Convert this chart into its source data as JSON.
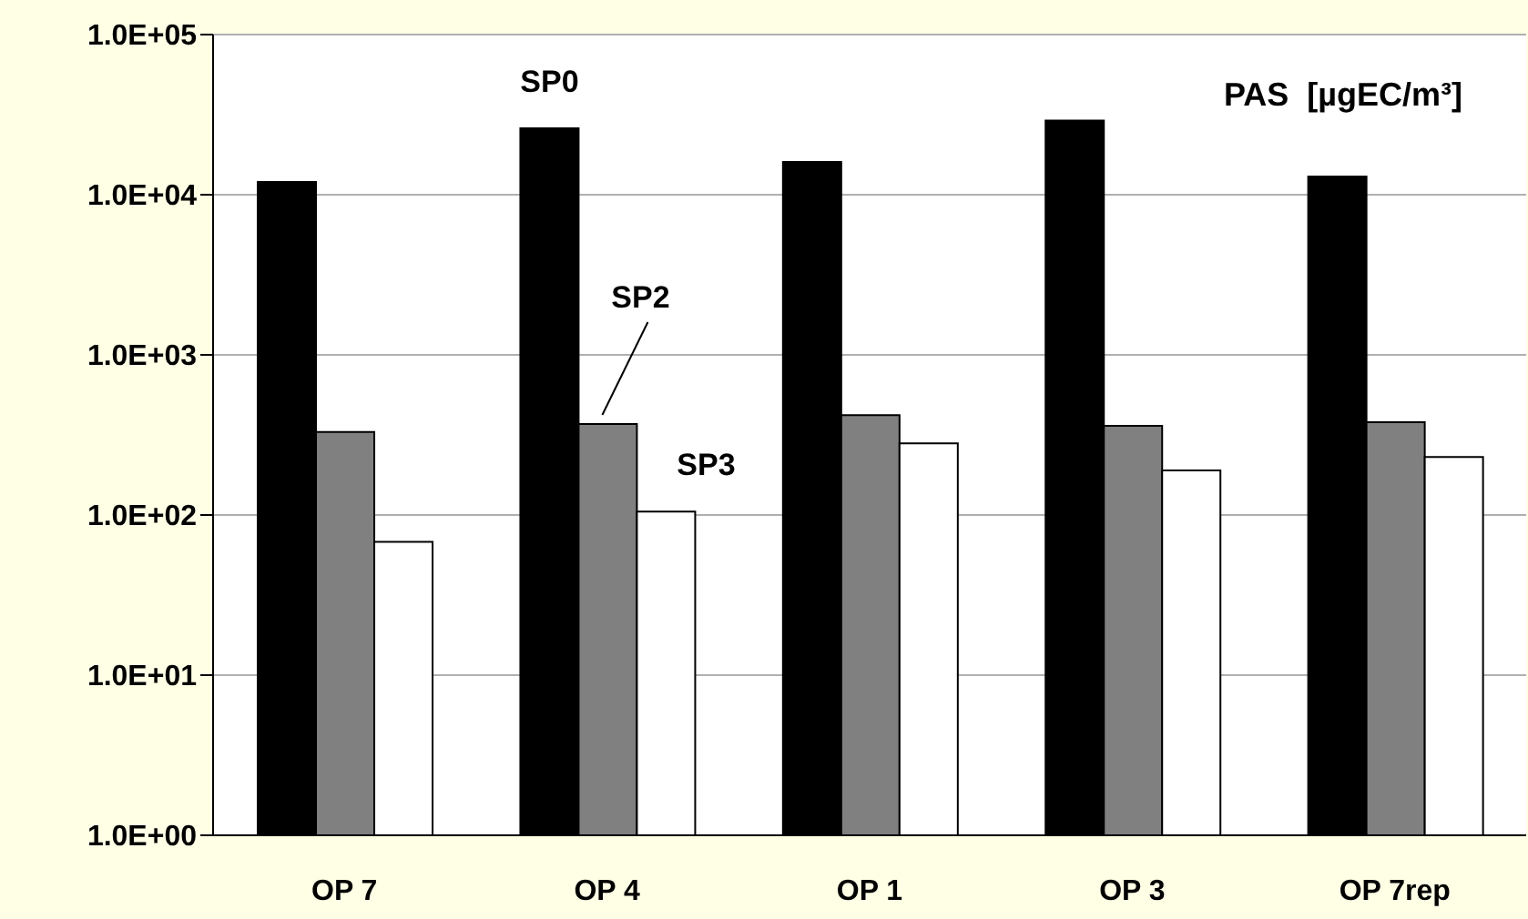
{
  "chart_data": {
    "type": "bar",
    "title": "PAS  [µgEC/m³]",
    "categories": [
      "OP 7",
      "OP 4",
      "OP 1",
      "OP 3",
      "OP 7rep"
    ],
    "series": [
      {
        "name": "SP0",
        "color": "#000000",
        "values": [
          12000,
          26000,
          16000,
          29000,
          13000
        ]
      },
      {
        "name": "SP2",
        "color": "#808080",
        "values": [
          330,
          370,
          420,
          360,
          380
        ]
      },
      {
        "name": "SP3",
        "color": "#ffffff",
        "values": [
          68,
          105,
          280,
          190,
          230
        ]
      }
    ],
    "log": true,
    "ylim": [
      1,
      100000
    ],
    "yticks": [
      {
        "value": 1,
        "label": "1.0E+00"
      },
      {
        "value": 10,
        "label": "1.0E+01"
      },
      {
        "value": 100,
        "label": "1.0E+02"
      },
      {
        "value": 1000,
        "label": "1.0E+03"
      },
      {
        "value": 10000,
        "label": "1.0E+04"
      },
      {
        "value": 100000,
        "label": "1.0E+05"
      }
    ],
    "grid": "y"
  }
}
